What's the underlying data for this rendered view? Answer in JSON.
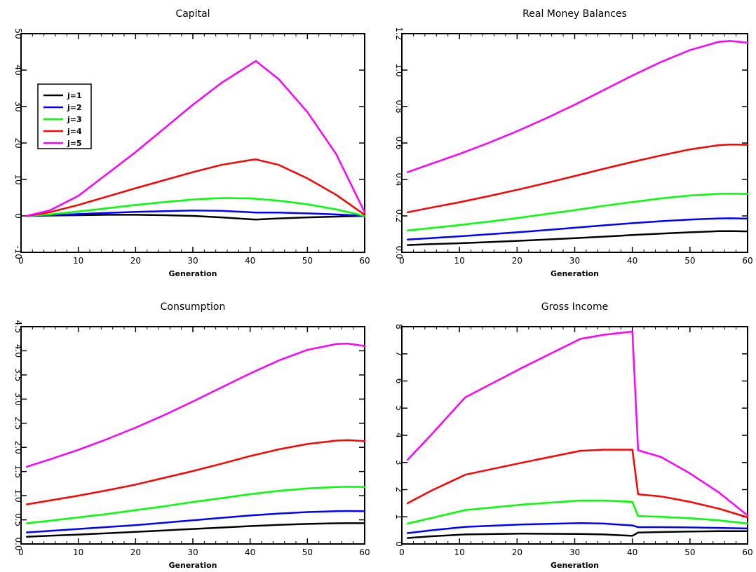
{
  "chart_data": [
    {
      "type": "line",
      "title": "Capital",
      "xlabel": "Generation",
      "ylabel": "",
      "xlim": [
        0,
        60
      ],
      "ylim": [
        -10,
        50
      ],
      "xticks": [
        0,
        10,
        20,
        30,
        40,
        50,
        60
      ],
      "yticks": [
        -10,
        0,
        10,
        20,
        30,
        40,
        50
      ],
      "ytick_labels": [
        "-10",
        "0",
        "10",
        "20",
        "30",
        "40",
        "50"
      ],
      "grid": false,
      "legend": "upper-left",
      "x": [
        1,
        5,
        10,
        15,
        20,
        25,
        30,
        35,
        40,
        41,
        45,
        50,
        55,
        60
      ],
      "series": [
        {
          "name": "j=1",
          "color": "#000000",
          "values": [
            0,
            0.1,
            0.2,
            0.3,
            0.3,
            0.2,
            0,
            -0.4,
            -0.9,
            -1,
            -0.7,
            -0.4,
            -0.2,
            0
          ]
        },
        {
          "name": "j=2",
          "color": "#0000ff",
          "values": [
            0,
            0.2,
            0.5,
            0.8,
            1.1,
            1.3,
            1.5,
            1.4,
            1.0,
            0.9,
            0.9,
            0.7,
            0.4,
            0
          ]
        },
        {
          "name": "j=3",
          "color": "#00ff00",
          "values": [
            0,
            0.4,
            1.2,
            2.1,
            3.0,
            3.8,
            4.5,
            4.9,
            4.8,
            4.7,
            4.2,
            3.2,
            1.8,
            0
          ]
        },
        {
          "name": "j=4",
          "color": "#ff0000",
          "values": [
            0,
            1.0,
            3.0,
            5.3,
            7.6,
            9.8,
            12.0,
            14.0,
            15.3,
            15.5,
            14.0,
            10.3,
            5.8,
            0.3
          ]
        },
        {
          "name": "j=5",
          "color": "#ff00ff",
          "values": [
            0,
            1.5,
            5.5,
            11.5,
            17.5,
            24,
            30.5,
            36.5,
            41.5,
            42.5,
            37.5,
            28.5,
            17,
            1
          ]
        }
      ]
    },
    {
      "type": "line",
      "title": "Real Money Balances",
      "xlabel": "Generation",
      "ylabel": "",
      "xlim": [
        0,
        60
      ],
      "ylim": [
        0,
        1.2
      ],
      "xticks": [
        0,
        10,
        20,
        30,
        40,
        50,
        60
      ],
      "yticks": [
        0,
        0.2,
        0.4,
        0.6,
        0.8,
        1.0,
        1.2
      ],
      "ytick_labels": [
        "0.0",
        "0.2",
        "0.4",
        "0.6",
        "0.8",
        "1.0",
        "1.2"
      ],
      "grid": false,
      "legend": "",
      "x": [
        1,
        5,
        10,
        15,
        20,
        25,
        30,
        35,
        40,
        45,
        50,
        55,
        57,
        60
      ],
      "series": [
        {
          "name": "j=1",
          "color": "#000000",
          "values": [
            0.04,
            0.045,
            0.05,
            0.056,
            0.063,
            0.07,
            0.078,
            0.086,
            0.095,
            0.103,
            0.11,
            0.116,
            0.117,
            0.115
          ]
        },
        {
          "name": "j=2",
          "color": "#0000ff",
          "values": [
            0.07,
            0.078,
            0.088,
            0.099,
            0.11,
            0.122,
            0.135,
            0.148,
            0.16,
            0.171,
            0.18,
            0.186,
            0.187,
            0.185
          ]
        },
        {
          "name": "j=3",
          "color": "#00ff00",
          "values": [
            0.12,
            0.133,
            0.15,
            0.168,
            0.188,
            0.21,
            0.232,
            0.255,
            0.276,
            0.296,
            0.312,
            0.321,
            0.322,
            0.32
          ]
        },
        {
          "name": "j=4",
          "color": "#ff0000",
          "values": [
            0.22,
            0.245,
            0.275,
            0.308,
            0.343,
            0.38,
            0.419,
            0.458,
            0.496,
            0.532,
            0.565,
            0.588,
            0.592,
            0.59
          ]
        },
        {
          "name": "j=5",
          "color": "#ff00ff",
          "values": [
            0.44,
            0.485,
            0.54,
            0.6,
            0.665,
            0.735,
            0.81,
            0.89,
            0.97,
            1.045,
            1.11,
            1.155,
            1.16,
            1.15
          ]
        }
      ]
    },
    {
      "type": "line",
      "title": "Consumption",
      "xlabel": "Generation",
      "ylabel": "",
      "xlim": [
        0,
        60
      ],
      "ylim": [
        0,
        4.5
      ],
      "xticks": [
        0,
        10,
        20,
        30,
        40,
        50,
        60
      ],
      "yticks": [
        0,
        0.5,
        1.0,
        1.5,
        2.0,
        2.5,
        3.0,
        3.5,
        4.0,
        4.5
      ],
      "ytick_labels": [
        "0.0",
        "0.5",
        "1.0",
        "1.5",
        "2.0",
        "2.5",
        "3.0",
        "3.5",
        "4.0",
        "4.5"
      ],
      "grid": false,
      "legend": "",
      "x": [
        1,
        5,
        10,
        15,
        20,
        25,
        30,
        35,
        40,
        45,
        50,
        55,
        57,
        60
      ],
      "series": [
        {
          "name": "j=1",
          "color": "#000000",
          "values": [
            0.15,
            0.17,
            0.195,
            0.22,
            0.25,
            0.28,
            0.31,
            0.34,
            0.37,
            0.395,
            0.415,
            0.428,
            0.43,
            0.43
          ]
        },
        {
          "name": "j=2",
          "color": "#0000ff",
          "values": [
            0.24,
            0.27,
            0.31,
            0.35,
            0.39,
            0.44,
            0.49,
            0.54,
            0.59,
            0.63,
            0.66,
            0.68,
            0.682,
            0.68
          ]
        },
        {
          "name": "j=3",
          "color": "#00ff00",
          "values": [
            0.43,
            0.48,
            0.55,
            0.62,
            0.7,
            0.78,
            0.87,
            0.95,
            1.03,
            1.1,
            1.15,
            1.18,
            1.185,
            1.18
          ]
        },
        {
          "name": "j=4",
          "color": "#ff0000",
          "values": [
            0.82,
            0.9,
            1.0,
            1.11,
            1.23,
            1.37,
            1.51,
            1.66,
            1.82,
            1.96,
            2.07,
            2.14,
            2.15,
            2.13
          ]
        },
        {
          "name": "j=5",
          "color": "#ff00ff",
          "values": [
            1.6,
            1.75,
            1.95,
            2.17,
            2.41,
            2.67,
            2.95,
            3.24,
            3.53,
            3.8,
            4.02,
            4.14,
            4.15,
            4.1
          ]
        }
      ]
    },
    {
      "type": "line",
      "title": "Gross Income",
      "xlabel": "Generation",
      "ylabel": "",
      "xlim": [
        0,
        60
      ],
      "ylim": [
        0,
        8
      ],
      "xticks": [
        0,
        10,
        20,
        30,
        40,
        50,
        60
      ],
      "yticks": [
        0,
        1,
        2,
        3,
        4,
        5,
        6,
        7,
        8
      ],
      "ytick_labels": [
        "0",
        "1",
        "2",
        "3",
        "4",
        "5",
        "6",
        "7",
        "8"
      ],
      "grid": false,
      "legend": "",
      "x": [
        1,
        5,
        11,
        21,
        31,
        35,
        40,
        41,
        45,
        50,
        55,
        60
      ],
      "series": [
        {
          "name": "j=1",
          "color": "#000000",
          "values": [
            0.22,
            0.28,
            0.35,
            0.38,
            0.37,
            0.35,
            0.3,
            0.42,
            0.44,
            0.46,
            0.47,
            0.47
          ]
        },
        {
          "name": "j=2",
          "color": "#0000ff",
          "values": [
            0.4,
            0.5,
            0.63,
            0.72,
            0.77,
            0.75,
            0.68,
            0.62,
            0.62,
            0.61,
            0.59,
            0.57
          ]
        },
        {
          "name": "j=3",
          "color": "#00ff00",
          "values": [
            0.75,
            0.95,
            1.25,
            1.45,
            1.6,
            1.6,
            1.55,
            1.03,
            1.0,
            0.95,
            0.87,
            0.75
          ]
        },
        {
          "name": "j=4",
          "color": "#ff0000",
          "values": [
            1.5,
            1.95,
            2.55,
            3.0,
            3.43,
            3.47,
            3.47,
            1.83,
            1.75,
            1.55,
            1.3,
            0.98
          ]
        },
        {
          "name": "j=5",
          "color": "#ff00ff",
          "values": [
            3.1,
            4.0,
            5.4,
            6.5,
            7.55,
            7.7,
            7.82,
            3.45,
            3.2,
            2.6,
            1.9,
            1.05
          ]
        }
      ]
    }
  ]
}
